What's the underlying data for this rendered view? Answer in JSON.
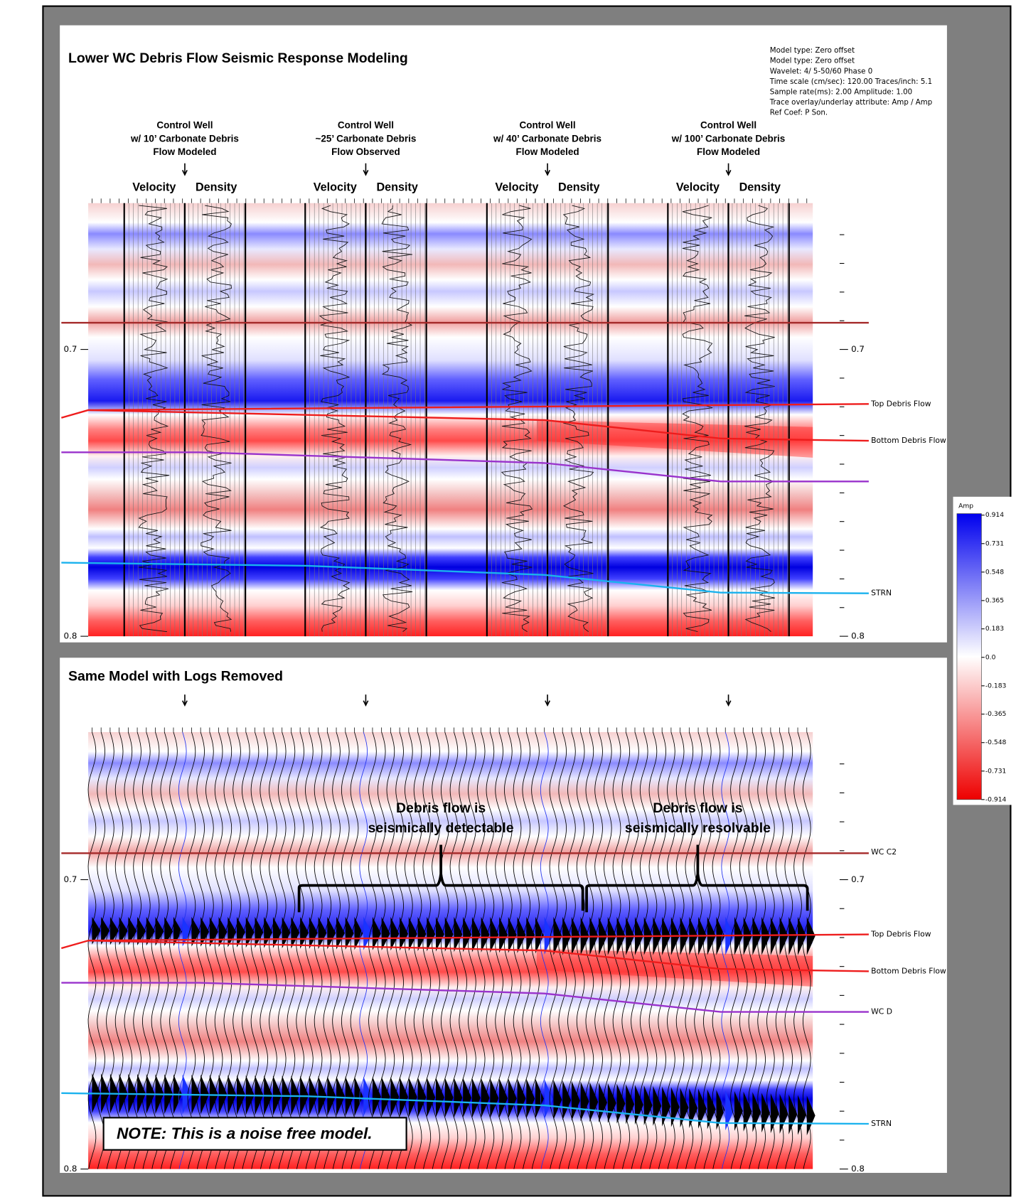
{
  "top_panel": {
    "title": "Lower WC Debris Flow Seismic Response Modeling",
    "model_info": [
      "Model type:  Zero offset",
      "Model type:  Zero offset",
      "Wavelet:  4/ 5-50/60  Phase 0",
      "Time scale (cm/sec): 120.00 Traces/inch:  5.1",
      "Sample rate(ms): 2.00       Amplitude: 1.00",
      "Trace overlay/underlay attribute: Amp / Amp",
      "Ref Coef: P Son."
    ],
    "wells": [
      {
        "lines": [
          "Control Well",
          "w/ 10’ Carbonate Debris",
          "Flow Modeled"
        ]
      },
      {
        "lines": [
          "Control Well",
          "~25’ Carbonate Debris",
          "Flow Observed"
        ]
      },
      {
        "lines": [
          "Control Well",
          "w/ 40’ Carbonate Debris",
          "Flow Modeled"
        ]
      },
      {
        "lines": [
          "Control Well",
          "w/ 100’ Carbonate Debris",
          "Flow Modeled"
        ]
      }
    ],
    "log_names": [
      "Velocity",
      "Density"
    ],
    "horizons": [
      "Top Debris Flow",
      "Bottom Debris Flow",
      "STRN"
    ]
  },
  "bottom_panel": {
    "title": "Same Model with Logs Removed",
    "annotations": [
      [
        "Debris flow is",
        "seismically detectable"
      ],
      [
        "Debris flow is",
        "seismically resolvable"
      ]
    ],
    "horizons": [
      "WC C2",
      "Top Debris Flow",
      "Bottom Debris Flow",
      "WC D",
      "STRN"
    ],
    "note": "NOTE: This is a noise free model."
  },
  "time_axis": {
    "tlim": [
      0.649,
      0.8
    ],
    "ticks": [
      0.7,
      0.8
    ],
    "minor_ticks": [
      0.66,
      0.67,
      0.68,
      0.69,
      0.71,
      0.72,
      0.73,
      0.74,
      0.75,
      0.76,
      0.77,
      0.78,
      0.79
    ]
  },
  "colorbar": {
    "title": "Amp",
    "ticks": [
      0.914,
      0.731,
      0.548,
      0.365,
      0.183,
      {
        "value": 0,
        "label": "0.0"
      },
      -0.183,
      -0.365,
      -0.548,
      -0.731,
      -0.914
    ]
  }
}
